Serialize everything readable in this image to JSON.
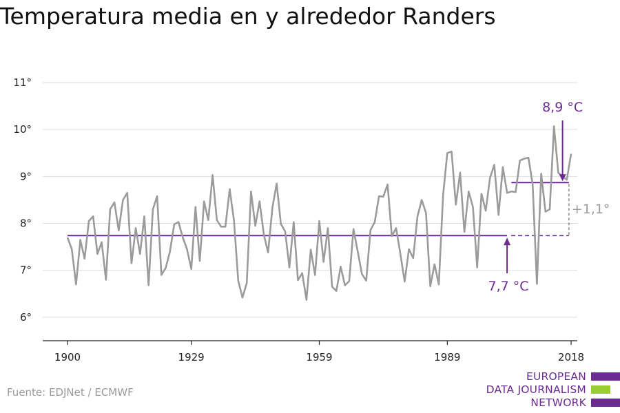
{
  "title": "Temperatura media en y alrededor Randers",
  "source": "Fuente: EDJNet / ECMWF",
  "logo": {
    "lines": [
      "EUROPEAN",
      "DATA JOURNALISM",
      "NETWORK"
    ],
    "colors": [
      "#6b2c91",
      "#9acd32",
      "#6b2c91"
    ]
  },
  "colors": {
    "series": "#9b9b9b",
    "accent": "#6b2c91",
    "delta": "#9b9b9b",
    "grid": "#dddddd",
    "axis": "#222222"
  },
  "annotations": {
    "recent_mean_label": "8,9 °C",
    "baseline_mean_label": "7,7 °C",
    "delta_label": "+1,1°"
  },
  "chart_data": {
    "type": "line",
    "title": "Temperatura media en y alrededor Randers",
    "xlabel": "",
    "ylabel": "",
    "x_ticks": [
      1900,
      1929,
      1959,
      1989,
      2018
    ],
    "x_tick_labels": [
      "1900",
      "1929",
      "1959",
      "1989",
      "2018"
    ],
    "y_ticks": [
      6,
      7,
      8,
      9,
      10,
      11
    ],
    "y_tick_labels": [
      "6°",
      "7°",
      "8°",
      "9°",
      "10°",
      "11°"
    ],
    "xlim": [
      1898,
      2020.5
    ],
    "ylim": [
      5.5,
      11
    ],
    "grid": true,
    "x": [
      1900,
      1901,
      1902,
      1903,
      1904,
      1905,
      1906,
      1907,
      1908,
      1909,
      1910,
      1911,
      1912,
      1913,
      1914,
      1915,
      1916,
      1917,
      1918,
      1919,
      1920,
      1921,
      1922,
      1923,
      1924,
      1925,
      1926,
      1927,
      1928,
      1929,
      1930,
      1931,
      1932,
      1933,
      1934,
      1935,
      1936,
      1937,
      1938,
      1939,
      1940,
      1941,
      1942,
      1943,
      1944,
      1945,
      1946,
      1947,
      1948,
      1949,
      1950,
      1951,
      1952,
      1953,
      1954,
      1955,
      1956,
      1957,
      1958,
      1959,
      1960,
      1961,
      1962,
      1963,
      1964,
      1965,
      1966,
      1967,
      1968,
      1969,
      1970,
      1971,
      1972,
      1973,
      1974,
      1975,
      1976,
      1977,
      1978,
      1979,
      1980,
      1981,
      1982,
      1983,
      1984,
      1985,
      1986,
      1987,
      1988,
      1989,
      1990,
      1991,
      1992,
      1993,
      1994,
      1995,
      1996,
      1997,
      1998,
      1999,
      2000,
      2001,
      2002,
      2003,
      2004,
      2005,
      2006,
      2007,
      2008,
      2009,
      2010,
      2011,
      2012,
      2013,
      2014,
      2015,
      2016,
      2017,
      2018
    ],
    "series": [
      {
        "values": [
          7.7,
          7.45,
          6.7,
          7.65,
          7.25,
          8.05,
          8.15,
          7.35,
          7.6,
          6.8,
          8.3,
          8.45,
          7.85,
          8.5,
          8.65,
          7.15,
          7.9,
          7.35,
          8.15,
          6.68,
          8.3,
          8.58,
          6.9,
          7.05,
          7.4,
          7.98,
          8.03,
          7.7,
          7.45,
          7.03,
          8.35,
          7.2,
          8.47,
          8.07,
          9.03,
          8.07,
          7.93,
          7.93,
          8.73,
          8.07,
          6.78,
          6.42,
          6.73,
          8.68,
          7.95,
          8.47,
          7.76,
          7.38,
          8.33,
          8.85,
          7.99,
          7.83,
          7.06,
          8.03,
          6.79,
          6.94,
          6.37,
          7.44,
          6.9,
          8.05,
          7.18,
          7.9,
          6.65,
          6.56,
          7.08,
          6.68,
          6.77,
          7.88,
          7.4,
          6.92,
          6.78,
          7.86,
          8.03,
          8.58,
          8.57,
          8.83,
          7.73,
          7.9,
          7.35,
          6.76,
          7.45,
          7.26,
          8.15,
          8.5,
          8.22,
          6.66,
          7.13,
          6.7,
          8.6,
          9.5,
          9.53,
          8.4,
          9.08,
          7.82,
          8.68,
          8.35,
          7.06,
          8.63,
          8.27,
          8.97,
          9.25,
          8.18,
          9.2,
          8.65,
          8.68,
          8.67,
          9.34,
          9.38,
          9.4,
          8.83,
          6.71,
          9.06,
          8.25,
          8.3,
          10.07,
          9.08,
          9.0,
          8.93,
          9.48
        ]
      }
    ],
    "reference_lines": [
      {
        "label": "7,7 °C",
        "value": 7.74,
        "x_start": 1900,
        "x_end": 2003
      },
      {
        "label": "8,9 °C",
        "value": 8.87,
        "x_start": 2004,
        "x_end": 2017
      }
    ]
  }
}
